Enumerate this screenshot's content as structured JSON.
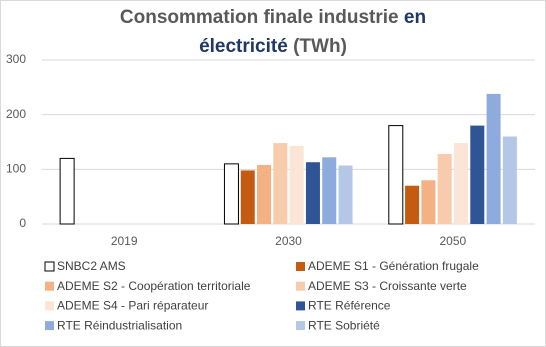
{
  "chart_data": {
    "type": "bar",
    "title": [
      "Consommation finale industrie",
      "en",
      "électricité",
      "(TWh)"
    ],
    "title_colors": [
      "#595959",
      "#1f3864",
      "#1f3864",
      "#595959"
    ],
    "categories": [
      "2019",
      "2030",
      "2050"
    ],
    "series": [
      {
        "name": "SNBC2 AMS",
        "color": "#ffffff",
        "values": [
          120,
          110,
          180
        ]
      },
      {
        "name": "ADEME S1 - Génération frugale",
        "color": "#c55a11",
        "values": [
          null,
          98,
          70
        ]
      },
      {
        "name": "ADEME S2 - Coopération territoriale",
        "color": "#f4b183",
        "values": [
          null,
          108,
          80
        ]
      },
      {
        "name": "ADEME S3 - Croissante verte",
        "color": "#f8cbad",
        "values": [
          null,
          148,
          128
        ]
      },
      {
        "name": "ADEME S4 - Pari réparateur",
        "color": "#fbe5d6",
        "values": [
          null,
          143,
          148
        ]
      },
      {
        "name": "RTE Référence",
        "color": "#2f5597",
        "values": [
          null,
          113,
          180
        ]
      },
      {
        "name": "RTE Réindustrialisation",
        "color": "#8faadc",
        "values": [
          null,
          122,
          238
        ]
      },
      {
        "name": "RTE Sobriété",
        "color": "#b4c7e7",
        "values": [
          null,
          107,
          160
        ]
      }
    ],
    "ylim": [
      0,
      300
    ],
    "yticks": [
      0,
      100,
      200,
      300
    ],
    "grid": true,
    "legend": "bottom"
  }
}
